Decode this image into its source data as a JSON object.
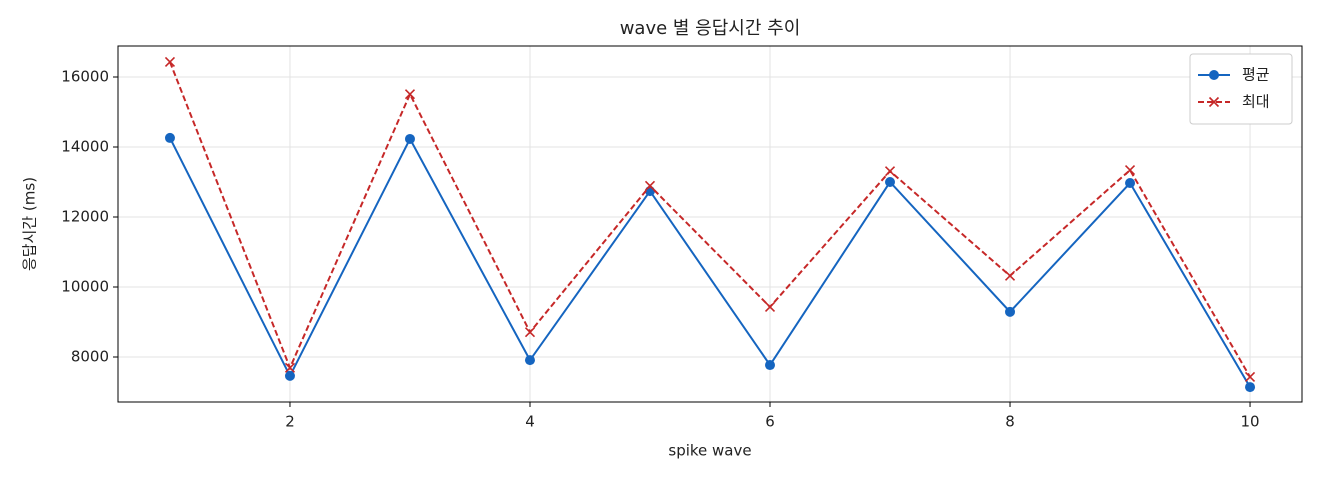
{
  "chart_data": {
    "type": "line",
    "title": "wave 별 응답시간 추이",
    "xlabel": "spike wave",
    "ylabel": "응답시간 (ms)",
    "x": [
      1,
      2,
      3,
      4,
      5,
      6,
      7,
      8,
      9,
      10
    ],
    "series": [
      {
        "name": "평균",
        "color": "#1565c0",
        "marker": "o",
        "linestyle": "solid",
        "values": [
          14260,
          7460,
          14230,
          7910,
          12740,
          7770,
          13000,
          9290,
          12970,
          7140
        ]
      },
      {
        "name": "최대",
        "color": "#c62828",
        "marker": "x",
        "linestyle": "dashed",
        "values": [
          16430,
          7690,
          15510,
          8710,
          12890,
          9430,
          13310,
          10320,
          13340,
          7430
        ]
      }
    ],
    "xlim": [
      0.567,
      10.433
    ],
    "xticks": [
      2,
      4,
      6,
      8,
      10
    ],
    "ylim": [
      6714,
      16886
    ],
    "yticks": [
      8000,
      10000,
      12000,
      14000,
      16000
    ],
    "grid": true,
    "legend": "upper right"
  }
}
